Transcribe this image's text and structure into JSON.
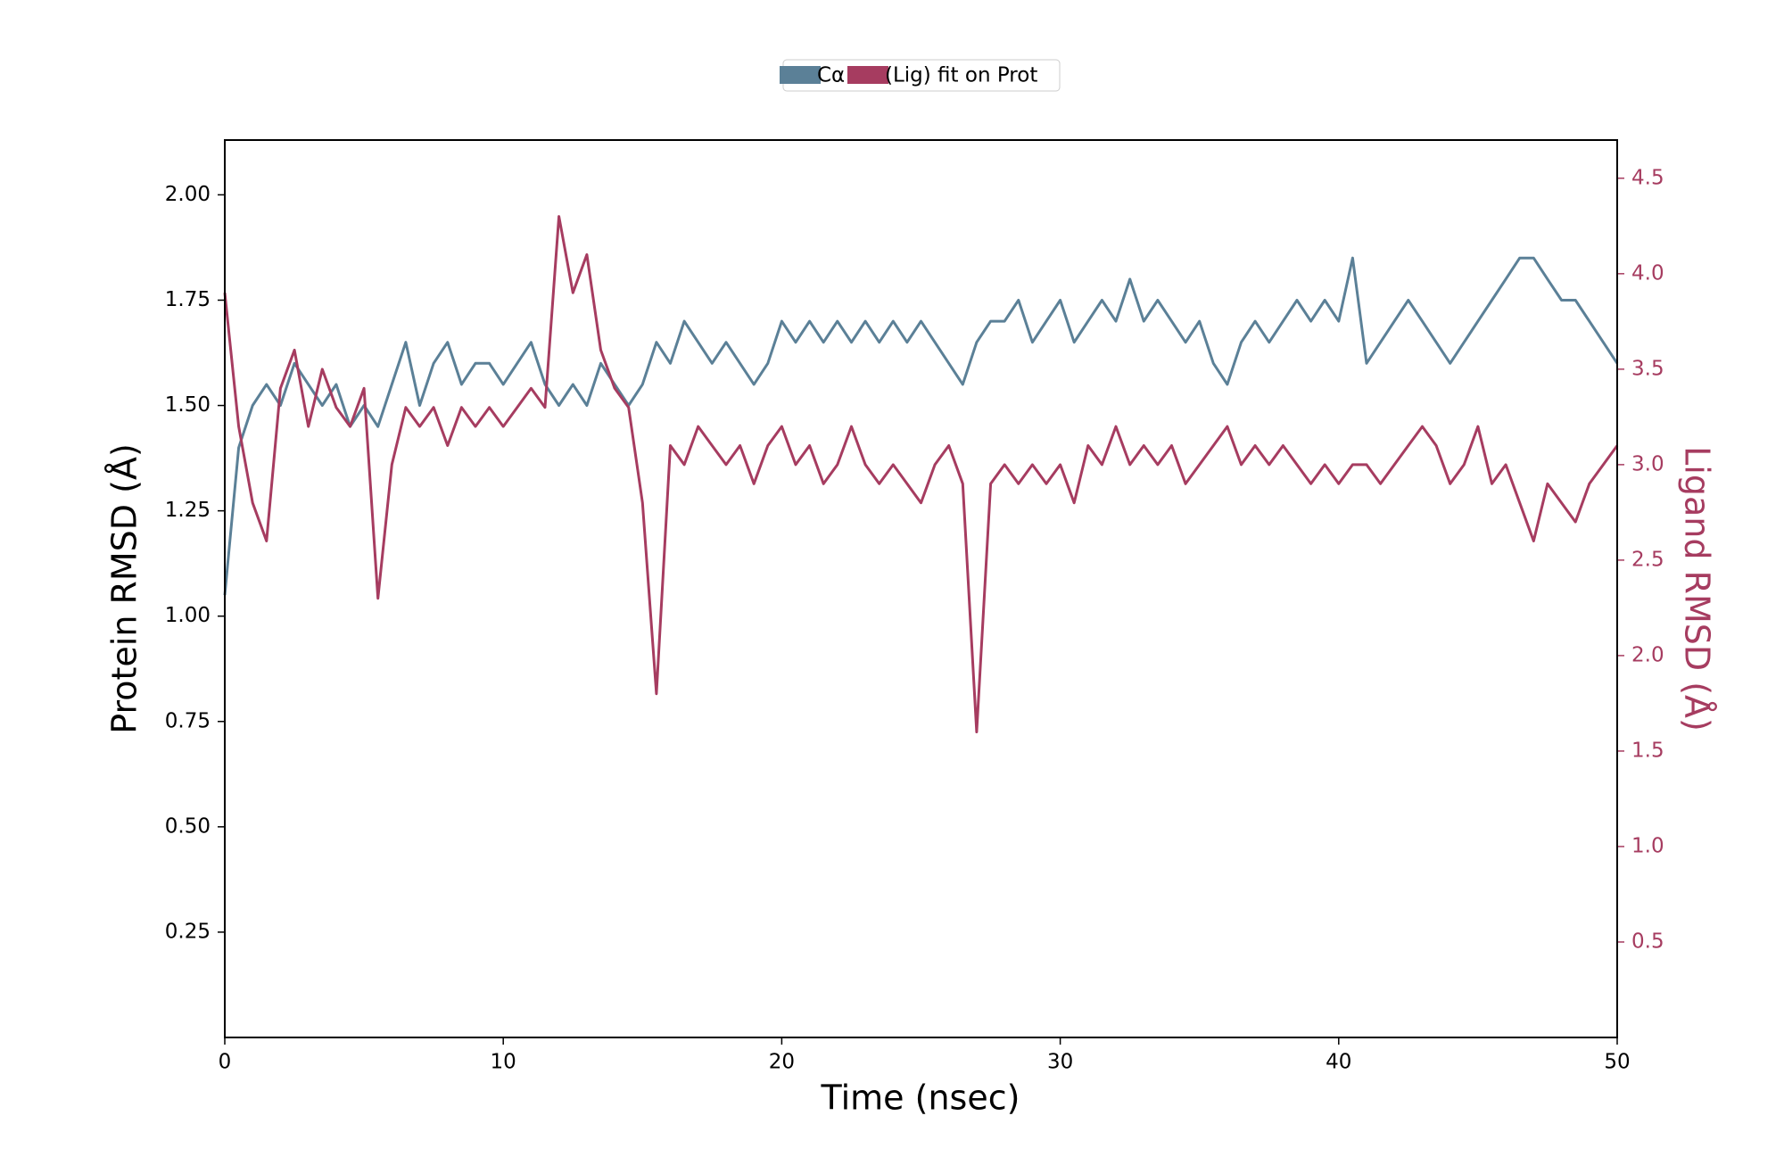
{
  "chart_data": {
    "type": "line",
    "xlabel": "Time (nsec)",
    "ylabel": "Protein RMSD (Å)",
    "y2label": "Ligand RMSD (Å)",
    "xlim": [
      0,
      50
    ],
    "xticks": [
      0,
      10,
      20,
      30,
      40,
      50
    ],
    "ylim": [
      0,
      2.13
    ],
    "yticks": [
      0.25,
      {
        "value": 0.5,
        "label": "0.50"
      },
      0.75,
      {
        "value": 1.0,
        "label": "1.00"
      },
      1.25,
      {
        "value": 1.5,
        "label": "1.50"
      },
      1.75,
      {
        "value": 2.0,
        "label": "2.00"
      }
    ],
    "y2lim": [
      0,
      4.7
    ],
    "y2ticks": [
      0.5,
      {
        "value": 1.0,
        "label": "1.0"
      },
      1.5,
      {
        "value": 2.0,
        "label": "2.0"
      },
      2.5,
      {
        "value": 3.0,
        "label": "3.0"
      },
      3.5,
      {
        "value": 4.0,
        "label": "4.0"
      },
      4.5
    ],
    "x": [
      0,
      0.5,
      1,
      1.5,
      2,
      2.5,
      3,
      3.5,
      4,
      4.5,
      5,
      5.5,
      6,
      6.5,
      7,
      7.5,
      8,
      8.5,
      9,
      9.5,
      10,
      10.5,
      11,
      11.5,
      12,
      12.5,
      13,
      13.5,
      14,
      14.5,
      15,
      15.5,
      16,
      16.5,
      17,
      17.5,
      18,
      18.5,
      19,
      19.5,
      20,
      20.5,
      21,
      21.5,
      22,
      22.5,
      23,
      23.5,
      24,
      24.5,
      25,
      25.5,
      26,
      26.5,
      27,
      27.5,
      28,
      28.5,
      29,
      29.5,
      30,
      30.5,
      31,
      31.5,
      32,
      32.5,
      33,
      33.5,
      34,
      34.5,
      35,
      35.5,
      36,
      36.5,
      37,
      37.5,
      38,
      38.5,
      39,
      39.5,
      40,
      40.5,
      41,
      41.5,
      42,
      42.5,
      43,
      43.5,
      44,
      44.5,
      45,
      45.5,
      46,
      46.5,
      47,
      47.5,
      48,
      48.5,
      49,
      49.5,
      50
    ],
    "series": [
      {
        "name": "Cα",
        "color": "#5b8097",
        "axis": "y",
        "values": [
          1.05,
          1.4,
          1.5,
          1.55,
          1.5,
          1.6,
          1.55,
          1.5,
          1.55,
          1.45,
          1.5,
          1.45,
          1.55,
          1.65,
          1.5,
          1.6,
          1.65,
          1.55,
          1.6,
          1.6,
          1.55,
          1.6,
          1.65,
          1.55,
          1.5,
          1.55,
          1.5,
          1.6,
          1.55,
          1.5,
          1.55,
          1.65,
          1.6,
          1.7,
          1.65,
          1.6,
          1.65,
          1.6,
          1.55,
          1.6,
          1.7,
          1.65,
          1.7,
          1.65,
          1.7,
          1.65,
          1.7,
          1.65,
          1.7,
          1.65,
          1.7,
          1.65,
          1.6,
          1.55,
          1.65,
          1.7,
          1.7,
          1.75,
          1.65,
          1.7,
          1.75,
          1.65,
          1.7,
          1.75,
          1.7,
          1.8,
          1.7,
          1.75,
          1.7,
          1.65,
          1.7,
          1.6,
          1.55,
          1.65,
          1.7,
          1.65,
          1.7,
          1.75,
          1.7,
          1.75,
          1.7,
          1.85,
          1.6,
          1.65,
          1.7,
          1.75,
          1.7,
          1.65,
          1.6,
          1.65,
          1.7,
          1.75,
          1.8,
          1.85,
          1.85,
          1.8,
          1.75,
          1.75,
          1.7,
          1.65,
          1.6
        ]
      },
      {
        "name": "(Lig) fit on Prot",
        "color": "#a63c60",
        "axis": "y2",
        "values": [
          3.9,
          3.2,
          2.8,
          2.6,
          3.4,
          3.6,
          3.2,
          3.5,
          3.3,
          3.2,
          3.4,
          2.3,
          3.0,
          3.3,
          3.2,
          3.3,
          3.1,
          3.3,
          3.2,
          3.3,
          3.2,
          3.3,
          3.4,
          3.3,
          4.3,
          3.9,
          4.1,
          3.6,
          3.4,
          3.3,
          2.8,
          1.8,
          3.1,
          3.0,
          3.2,
          3.1,
          3.0,
          3.1,
          2.9,
          3.1,
          3.2,
          3.0,
          3.1,
          2.9,
          3.0,
          3.2,
          3.0,
          2.9,
          3.0,
          2.9,
          2.8,
          3.0,
          3.1,
          2.9,
          1.6,
          2.9,
          3.0,
          2.9,
          3.0,
          2.9,
          3.0,
          2.8,
          3.1,
          3.0,
          3.2,
          3.0,
          3.1,
          3.0,
          3.1,
          2.9,
          3.0,
          3.1,
          3.2,
          3.0,
          3.1,
          3.0,
          3.1,
          3.0,
          2.9,
          3.0,
          2.9,
          3.0,
          3.0,
          2.9,
          3.0,
          3.1,
          3.2,
          3.1,
          2.9,
          3.0,
          3.2,
          2.9,
          3.0,
          2.8,
          2.6,
          2.9,
          2.8,
          2.7,
          2.9,
          3.0,
          3.1
        ]
      }
    ]
  }
}
